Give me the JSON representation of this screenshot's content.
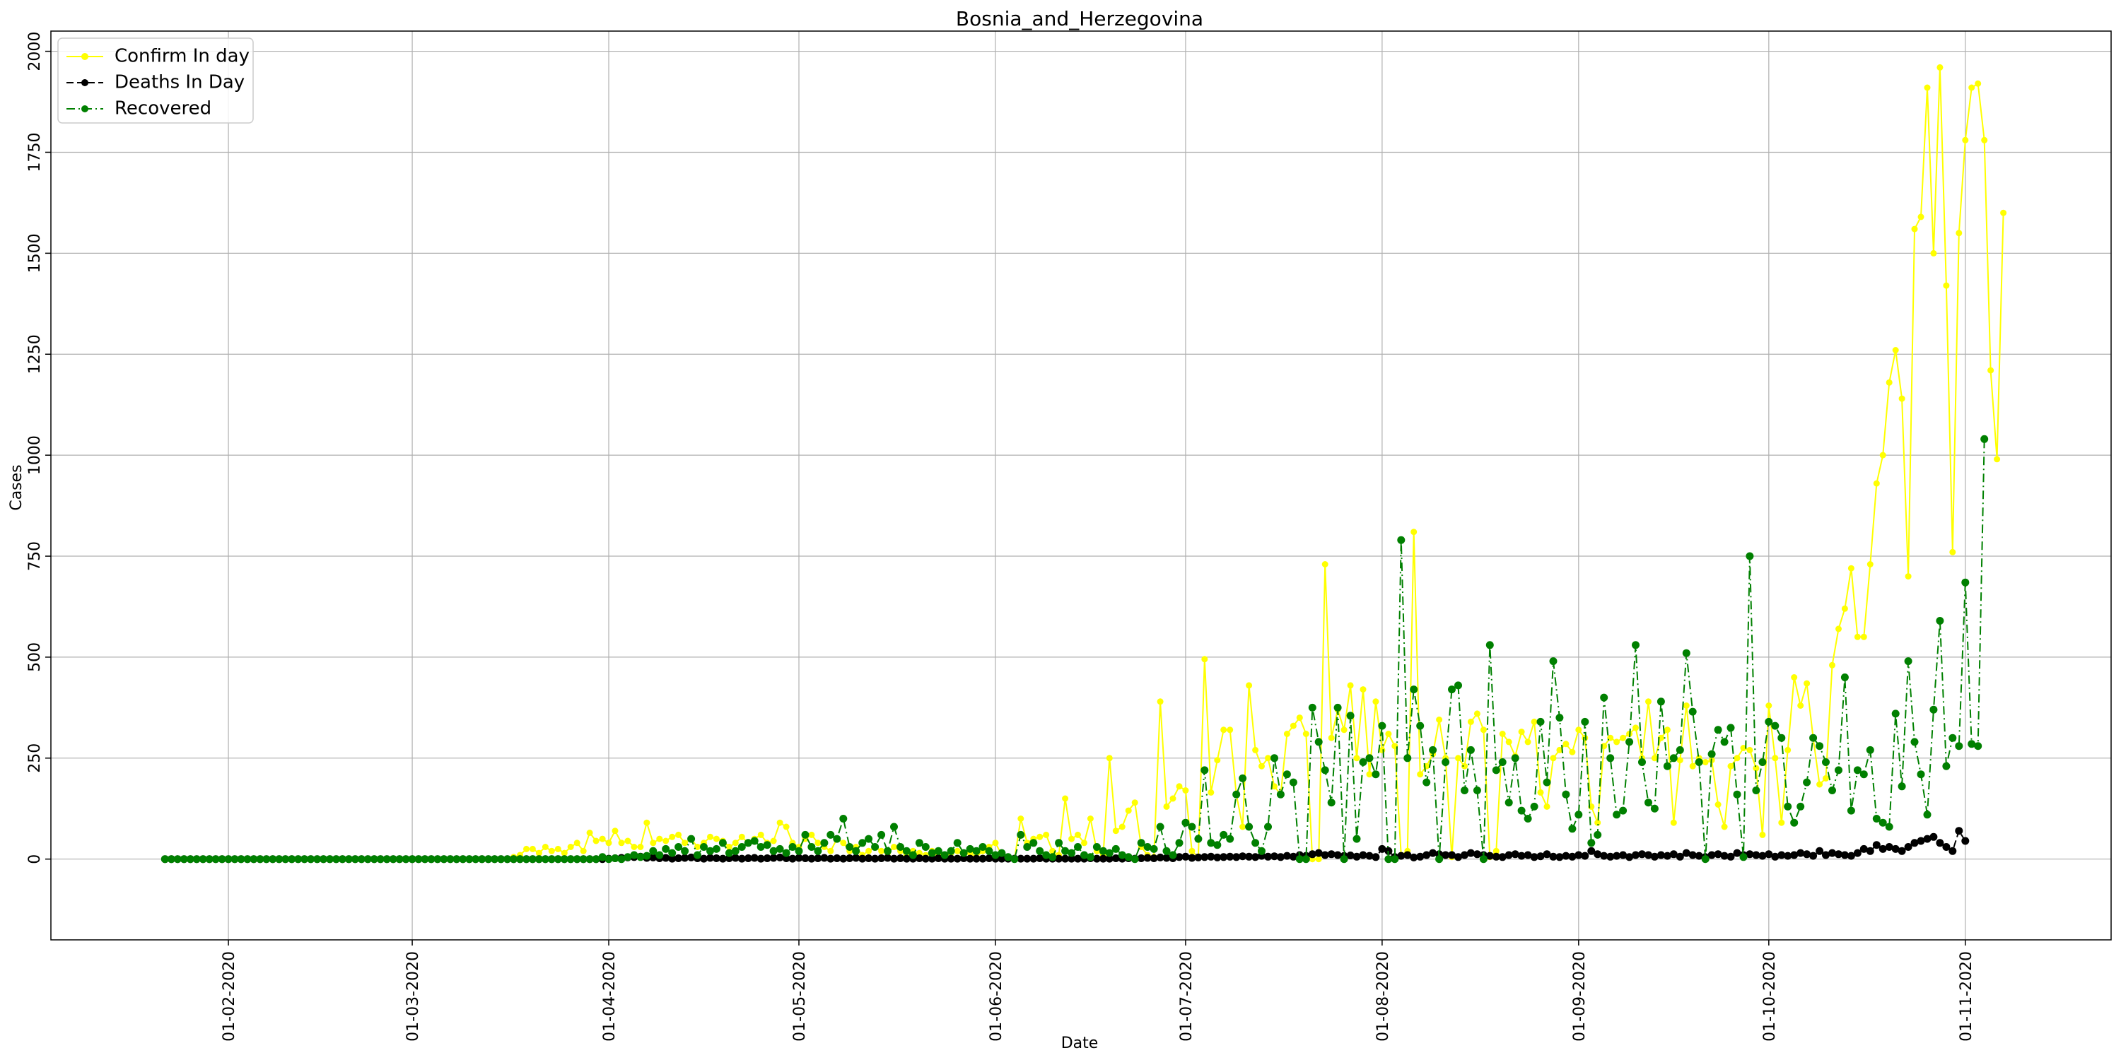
{
  "chart_data": {
    "type": "line",
    "title": "Bosnia_and_Herzegovina",
    "xlabel": "Date",
    "ylabel": "Cases",
    "x_start": "2020-01-22",
    "x_end": "2020-11-08",
    "xlim": [
      "2020-01-04",
      "2020-11-24"
    ],
    "ylim": [
      -200,
      2050
    ],
    "yticks": [
      0,
      250,
      500,
      750,
      1000,
      1250,
      1500,
      1750,
      2000
    ],
    "xticks": [
      "01-02-2020",
      "01-03-2020",
      "01-04-2020",
      "01-05-2020",
      "01-06-2020",
      "01-07-2020",
      "01-08-2020",
      "01-09-2020",
      "01-10-2020",
      "01-11-2020"
    ],
    "grid": true,
    "legend_position": "upper-left",
    "series": [
      {
        "name": "Confirm In day",
        "color": "#ffff00",
        "style": "solid",
        "values": [
          0,
          0,
          0,
          0,
          0,
          0,
          0,
          0,
          0,
          0,
          0,
          0,
          0,
          0,
          0,
          0,
          0,
          0,
          0,
          0,
          0,
          0,
          0,
          0,
          0,
          0,
          0,
          0,
          0,
          0,
          0,
          0,
          0,
          0,
          0,
          0,
          0,
          0,
          0,
          0,
          0,
          0,
          0,
          0,
          0,
          0,
          0,
          0,
          0,
          0,
          0,
          0,
          0,
          0,
          0,
          5,
          10,
          25,
          25,
          15,
          30,
          20,
          25,
          15,
          30,
          40,
          20,
          65,
          45,
          50,
          40,
          70,
          40,
          45,
          30,
          30,
          90,
          40,
          50,
          45,
          55,
          60,
          40,
          50,
          30,
          40,
          55,
          50,
          45,
          30,
          40,
          55,
          40,
          50,
          60,
          40,
          45,
          90,
          80,
          40,
          30,
          50,
          60,
          40,
          30,
          20,
          50,
          40,
          20,
          30,
          10,
          20,
          30,
          20,
          15,
          30,
          20,
          10,
          20,
          15,
          10,
          20,
          10,
          5,
          15,
          20,
          10,
          15,
          5,
          20,
          30,
          40,
          10,
          5,
          0,
          100,
          40,
          50,
          55,
          60,
          20,
          10,
          150,
          50,
          60,
          40,
          100,
          20,
          10,
          250,
          70,
          80,
          120,
          140,
          30,
          10,
          5,
          390,
          130,
          150,
          180,
          170,
          20,
          5,
          495,
          165,
          245,
          320,
          320,
          160,
          80,
          430,
          270,
          230,
          250,
          180,
          160,
          310,
          330,
          350,
          310,
          0,
          0,
          730,
          300,
          370,
          320,
          430,
          250,
          420,
          210,
          390,
          270,
          310,
          280,
          10,
          20,
          810,
          210,
          230,
          260,
          345,
          250,
          5,
          250,
          230,
          340,
          360,
          320,
          5,
          20,
          310,
          290,
          255,
          315,
          290,
          340,
          165,
          130,
          250,
          270,
          285,
          265,
          320,
          300,
          130,
          90,
          280,
          300,
          290,
          300,
          310,
          325,
          250,
          390,
          250,
          300,
          320,
          90,
          245,
          380,
          230,
          250,
          240,
          245,
          135,
          80,
          230,
          250,
          275,
          270,
          225,
          60,
          380,
          250,
          90,
          270,
          450,
          380,
          435,
          300,
          185,
          200,
          480,
          570,
          620,
          720,
          550,
          550,
          730,
          930,
          1000,
          1180,
          1260,
          1140,
          700,
          1560,
          1590,
          1910,
          1500,
          1960,
          1420,
          760,
          1550,
          1780,
          1910,
          1920,
          1780,
          1210,
          990,
          1600
        ]
      },
      {
        "name": "Deaths In Day",
        "color": "#000000",
        "style": "dashed",
        "values": [
          0,
          0,
          0,
          0,
          0,
          0,
          0,
          0,
          0,
          0,
          0,
          0,
          0,
          0,
          0,
          0,
          0,
          0,
          0,
          0,
          0,
          0,
          0,
          0,
          0,
          0,
          0,
          0,
          0,
          0,
          0,
          0,
          0,
          0,
          0,
          0,
          0,
          0,
          0,
          0,
          0,
          0,
          0,
          0,
          0,
          0,
          0,
          0,
          0,
          0,
          0,
          0,
          0,
          0,
          0,
          0,
          0,
          0,
          0,
          0,
          0,
          0,
          0,
          0,
          0,
          0,
          0,
          0,
          0,
          0,
          1,
          2,
          3,
          4,
          5,
          6,
          3,
          4,
          2,
          3,
          1,
          2,
          3,
          4,
          2,
          1,
          3,
          2,
          1,
          2,
          3,
          1,
          2,
          3,
          1,
          2,
          3,
          4,
          2,
          1,
          3,
          2,
          1,
          2,
          3,
          1,
          2,
          1,
          2,
          3,
          1,
          2,
          1,
          2,
          3,
          1,
          2,
          1,
          1,
          2,
          1,
          1,
          2,
          1,
          1,
          1,
          2,
          1,
          1,
          1,
          2,
          1,
          1,
          1,
          1,
          1,
          1,
          1,
          2,
          1,
          1,
          1,
          1,
          1,
          1,
          1,
          2,
          1,
          1,
          1,
          2,
          1,
          2,
          1,
          2,
          3,
          2,
          4,
          3,
          2,
          5,
          6,
          3,
          4,
          5,
          6,
          4,
          5,
          6,
          5,
          7,
          6,
          5,
          8,
          6,
          7,
          5,
          8,
          6,
          10,
          8,
          12,
          15,
          10,
          12,
          10,
          8,
          9,
          6,
          10,
          8,
          5,
          25,
          20,
          5,
          8,
          10,
          4,
          6,
          10,
          15,
          12,
          10,
          10,
          5,
          10,
          15,
          12,
          10,
          8,
          6,
          5,
          10,
          12,
          8,
          10,
          5,
          7,
          12,
          6,
          5,
          8,
          6,
          10,
          8,
          20,
          12,
          8,
          6,
          8,
          10,
          5,
          10,
          12,
          10,
          6,
          10,
          8,
          12,
          6,
          15,
          10,
          8,
          5,
          10,
          12,
          8,
          6,
          15,
          10,
          12,
          10,
          8,
          12,
          6,
          10,
          8,
          10,
          15,
          12,
          8,
          20,
          10,
          15,
          12,
          10,
          8,
          15,
          25,
          20,
          35,
          25,
          30,
          25,
          20,
          30,
          40,
          45,
          50,
          55,
          40,
          30,
          20,
          70,
          45
        ]
      },
      {
        "name": "Recovered",
        "color": "#008000",
        "style": "dashdot",
        "values": [
          0,
          0,
          0,
          0,
          0,
          0,
          0,
          0,
          0,
          0,
          0,
          0,
          0,
          0,
          0,
          0,
          0,
          0,
          0,
          0,
          0,
          0,
          0,
          0,
          0,
          0,
          0,
          0,
          0,
          0,
          0,
          0,
          0,
          0,
          0,
          0,
          0,
          0,
          0,
          0,
          0,
          0,
          0,
          0,
          0,
          0,
          0,
          0,
          0,
          0,
          0,
          0,
          0,
          0,
          0,
          0,
          0,
          0,
          0,
          0,
          0,
          0,
          0,
          0,
          0,
          0,
          0,
          0,
          0,
          5,
          0,
          2,
          0,
          5,
          10,
          5,
          8,
          20,
          10,
          25,
          15,
          30,
          20,
          50,
          10,
          30,
          20,
          25,
          40,
          15,
          20,
          30,
          40,
          45,
          30,
          35,
          20,
          25,
          15,
          30,
          20,
          60,
          30,
          20,
          40,
          60,
          50,
          100,
          30,
          20,
          40,
          50,
          30,
          60,
          20,
          80,
          30,
          20,
          10,
          40,
          30,
          15,
          20,
          10,
          20,
          40,
          15,
          25,
          20,
          30,
          20,
          10,
          15,
          5,
          0,
          60,
          30,
          40,
          20,
          10,
          5,
          40,
          20,
          15,
          30,
          10,
          5,
          30,
          20,
          15,
          25,
          10,
          5,
          0,
          40,
          30,
          25,
          80,
          20,
          10,
          40,
          90,
          80,
          50,
          220,
          40,
          35,
          60,
          50,
          160,
          200,
          80,
          40,
          20,
          80,
          250,
          160,
          210,
          190,
          0,
          0,
          375,
          290,
          220,
          140,
          375,
          0,
          355,
          50,
          240,
          250,
          210,
          330,
          0,
          0,
          790,
          250,
          420,
          330,
          190,
          270,
          0,
          240,
          420,
          430,
          170,
          270,
          170,
          0,
          530,
          220,
          240,
          140,
          250,
          120,
          100,
          130,
          340,
          190,
          490,
          350,
          160,
          75,
          110,
          340,
          40,
          60,
          400,
          250,
          110,
          120,
          290,
          530,
          240,
          140,
          125,
          390,
          230,
          250,
          270,
          510,
          365,
          240,
          0,
          260,
          320,
          290,
          325,
          160,
          5,
          750,
          170,
          240,
          340,
          330,
          300,
          130,
          90,
          130,
          190,
          300,
          280,
          240,
          170,
          220,
          450,
          120,
          220,
          210,
          270,
          100,
          90,
          80,
          360,
          180,
          490,
          290,
          210,
          110,
          370,
          590,
          230,
          300,
          280,
          685,
          285,
          280,
          1040
        ]
      }
    ]
  }
}
